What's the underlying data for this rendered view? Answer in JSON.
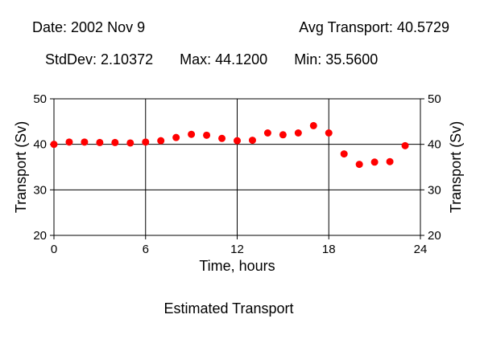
{
  "header": {
    "date": "Date: 2002 Nov 9",
    "avg": "Avg Transport: 40.5729",
    "stddev": "StdDev: 2.10372",
    "max": "Max: 44.1200",
    "min": "Min: 35.5600"
  },
  "caption": "Estimated Transport",
  "chart_data": {
    "type": "scatter",
    "xlabel": "Time, hours",
    "ylabel": "Transport (Sv)",
    "xlim": [
      0,
      24
    ],
    "ylim": [
      20,
      50
    ],
    "x_ticks": [
      0,
      6,
      12,
      18,
      24
    ],
    "y_ticks": [
      20,
      30,
      40,
      50
    ],
    "grid": true,
    "point_color": "#ff0000",
    "series": [
      {
        "x": [
          0,
          1,
          2,
          3,
          4,
          5,
          6,
          7,
          8,
          9,
          10,
          11,
          12,
          13,
          14,
          15,
          16,
          17,
          18,
          19,
          20,
          21,
          22,
          23
        ],
        "y": [
          40.0,
          40.5,
          40.5,
          40.4,
          40.4,
          40.3,
          40.5,
          40.8,
          41.5,
          42.2,
          42.0,
          41.3,
          40.8,
          40.9,
          42.5,
          42.1,
          42.5,
          44.1,
          42.5,
          37.9,
          35.6,
          36.1,
          36.2,
          39.7
        ]
      }
    ]
  }
}
